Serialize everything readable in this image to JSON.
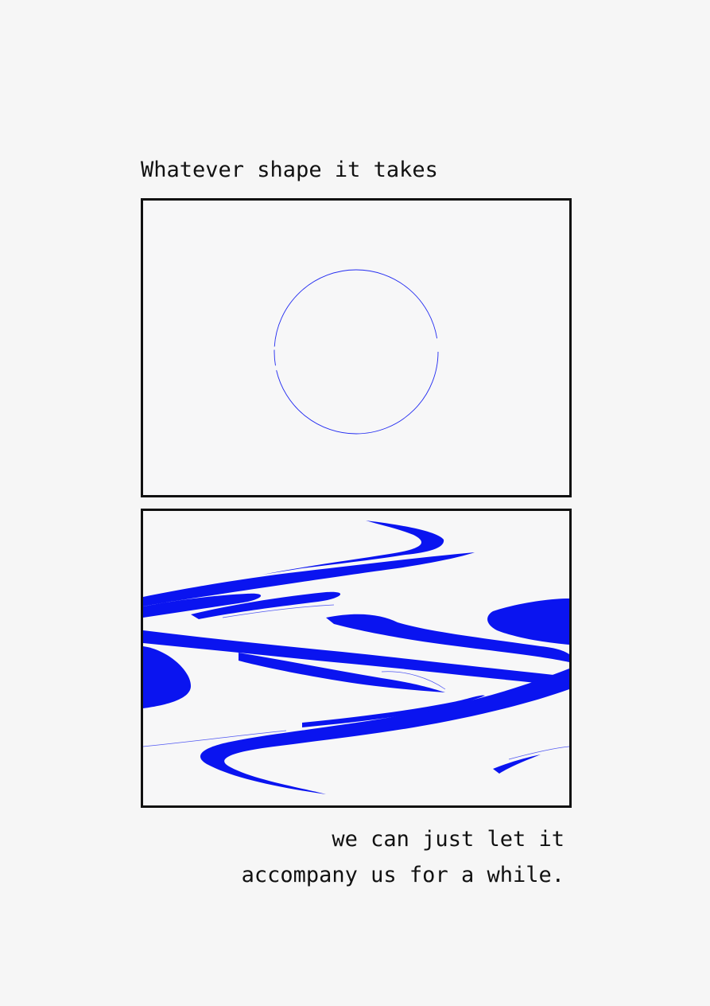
{
  "texts": {
    "top_caption": "Whatever shape it takes",
    "bottom_line_1": "we can just let it",
    "bottom_line_2": "accompany us for a while."
  },
  "colors": {
    "background": "#f6f6f6",
    "ink": "#111111",
    "accent_blue": "#0a14f0"
  }
}
